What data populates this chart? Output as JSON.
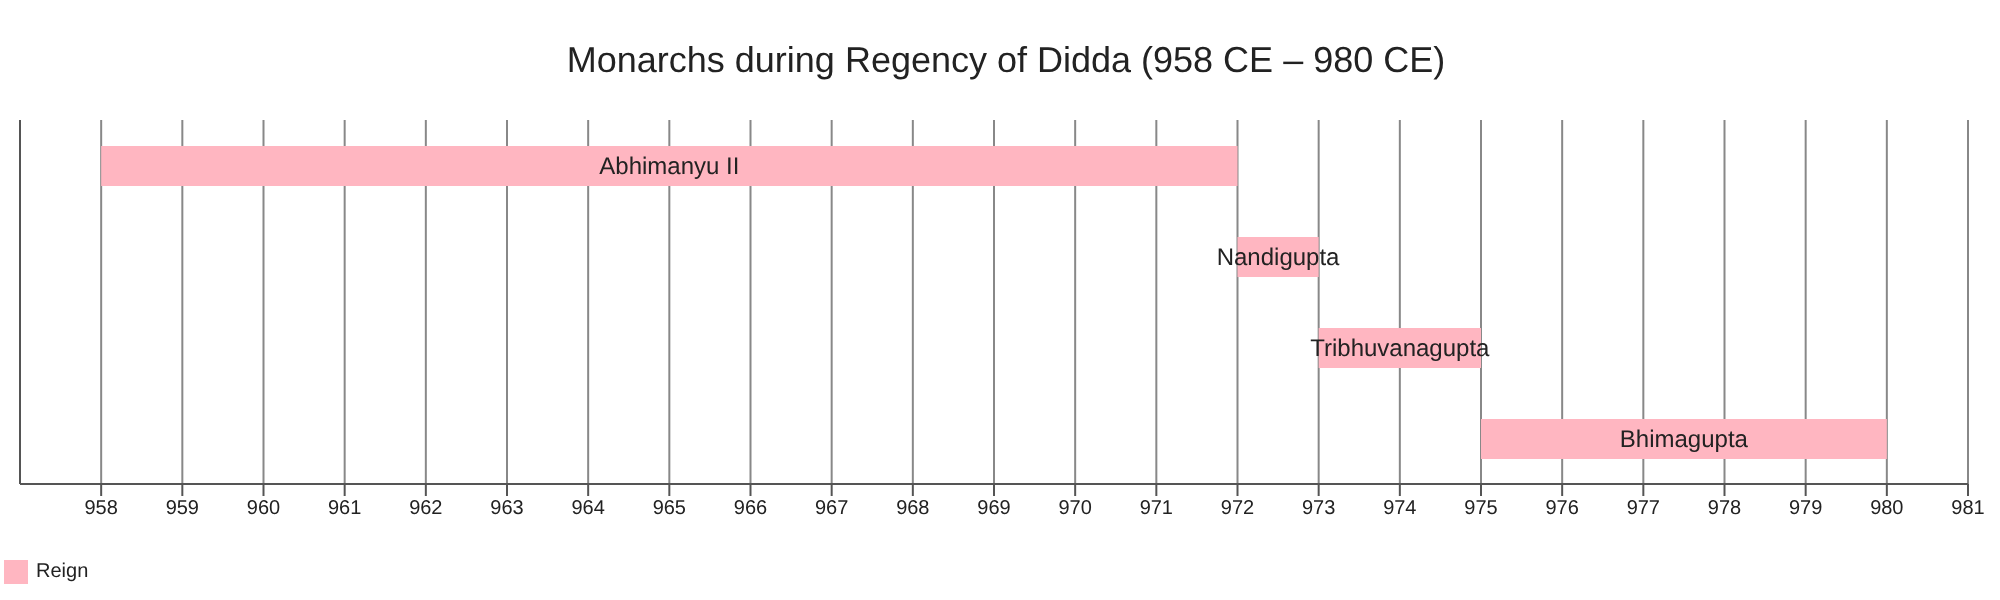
{
  "chart_data": {
    "type": "bar",
    "orientation": "horizontal",
    "title": "Monarchs during Regency of Didda (958 CE – 980 CE)",
    "categories": [
      "Abhimanyu II",
      "Nandigupta",
      "Tribhuvanagupta",
      "Bhimagupta"
    ],
    "series": [
      {
        "name": "Reign",
        "color": "#ffb6c1",
        "base": [
          958,
          972,
          973,
          975
        ],
        "values": [
          14,
          1,
          2,
          5
        ]
      }
    ],
    "xlim": [
      957,
      981
    ],
    "xticks": [
      958,
      959,
      960,
      961,
      962,
      963,
      964,
      965,
      966,
      967,
      968,
      969,
      970,
      971,
      972,
      973,
      974,
      975,
      976,
      977,
      978,
      979,
      980,
      981
    ],
    "grid": "x",
    "legend": "bottom left"
  }
}
